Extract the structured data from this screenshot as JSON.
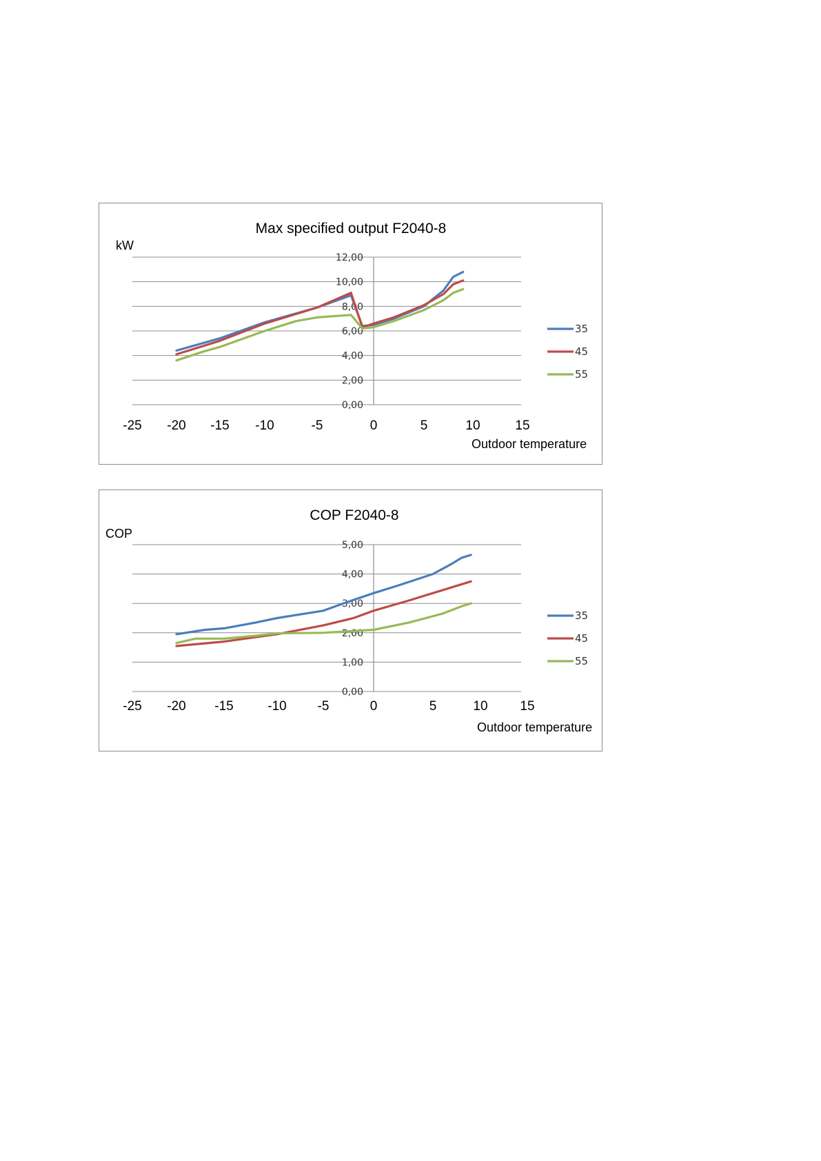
{
  "chart_data": [
    {
      "type": "line",
      "title": "Max specified output F2040-8",
      "ylabel": "kW",
      "xlabel": "Outdoor temperature",
      "xlim": [
        -25,
        15
      ],
      "ylim": [
        0,
        12
      ],
      "xticks": [
        "-25",
        "-20",
        "-15",
        "-10",
        "-5",
        "0",
        "5",
        "10",
        "15"
      ],
      "yticks": [
        "0,00",
        "2,00",
        "4,00",
        "6,00",
        "8,00",
        "10,00",
        "12,00"
      ],
      "grid": true,
      "legend": "right",
      "series": [
        {
          "name": "35",
          "color": "#4a7ebb",
          "x": [
            -20,
            -15,
            -10,
            -5,
            -2,
            -1,
            0,
            2,
            5,
            7,
            8,
            9
          ],
          "y": [
            4.4,
            5.4,
            6.7,
            7.9,
            8.9,
            6.4,
            6.5,
            7.0,
            8.0,
            9.3,
            10.4,
            10.8
          ]
        },
        {
          "name": "45",
          "color": "#be4b48",
          "x": [
            -20,
            -15,
            -10,
            -5,
            -2,
            -1,
            0,
            2,
            5,
            7,
            8,
            9
          ],
          "y": [
            4.1,
            5.2,
            6.6,
            7.9,
            9.1,
            6.3,
            6.6,
            7.1,
            8.1,
            9.0,
            9.8,
            10.1
          ]
        },
        {
          "name": "55",
          "color": "#98b954",
          "x": [
            -20,
            -17,
            -15,
            -10,
            -7,
            -5,
            -2,
            -1,
            0,
            2,
            5,
            7,
            8,
            9
          ],
          "y": [
            3.6,
            4.3,
            4.7,
            6.0,
            6.8,
            7.1,
            7.3,
            6.2,
            6.3,
            6.8,
            7.7,
            8.5,
            9.1,
            9.4
          ]
        }
      ]
    },
    {
      "type": "line",
      "title": "COP F2040-8",
      "ylabel": "COP",
      "xlabel": "Outdoor temperature",
      "xlim": [
        -25,
        15
      ],
      "ylim": [
        0,
        5
      ],
      "xticks": [
        "-25",
        "-20",
        "-15",
        "-10",
        "-5",
        "0",
        "5",
        "10",
        "15"
      ],
      "yticks": [
        "0,00",
        "1,00",
        "2,00",
        "3,00",
        "4,00",
        "5,00"
      ],
      "grid": true,
      "legend": "right",
      "series": [
        {
          "name": "35",
          "color": "#4a7ebb",
          "x": [
            -20,
            -17,
            -15,
            -12,
            -10,
            -7,
            -5,
            -3,
            0,
            2,
            5,
            7,
            8,
            9
          ],
          "y": [
            1.95,
            2.1,
            2.15,
            2.35,
            2.5,
            2.65,
            2.75,
            3.0,
            3.35,
            3.6,
            4.0,
            4.35,
            4.55,
            4.65
          ]
        },
        {
          "name": "45",
          "color": "#be4b48",
          "x": [
            -20,
            -15,
            -10,
            -5,
            -2,
            0,
            3,
            7,
            9
          ],
          "y": [
            1.55,
            1.7,
            1.95,
            2.25,
            2.5,
            2.75,
            3.1,
            3.55,
            3.75
          ]
        },
        {
          "name": "55",
          "color": "#98b954",
          "x": [
            -20,
            -18,
            -15,
            -12,
            -10,
            -5,
            0,
            3,
            6,
            8,
            9
          ],
          "y": [
            1.65,
            1.8,
            1.8,
            1.9,
            1.98,
            2.0,
            2.1,
            2.35,
            2.65,
            2.9,
            3.0
          ]
        }
      ]
    }
  ]
}
